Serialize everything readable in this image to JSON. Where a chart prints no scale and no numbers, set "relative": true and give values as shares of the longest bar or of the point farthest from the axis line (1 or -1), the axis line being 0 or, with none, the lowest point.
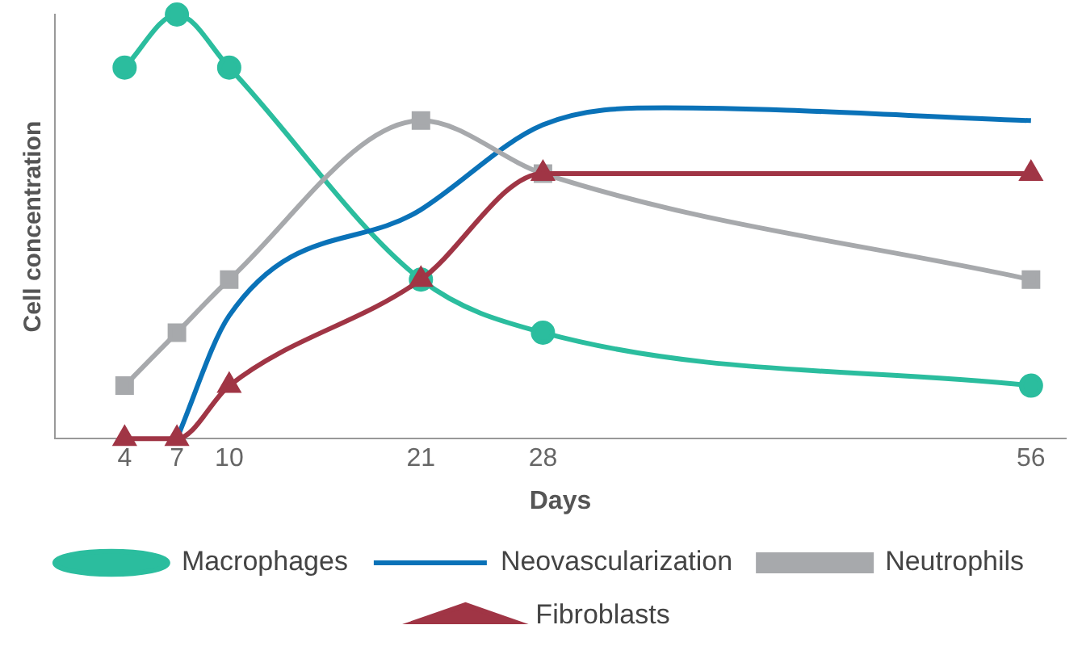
{
  "chart_data": {
    "type": "line",
    "xlabel": "Days",
    "ylabel": "Cell concentration",
    "relative": true,
    "xlim": [
      0,
      58
    ],
    "xticks": [
      4,
      7,
      10,
      21,
      28,
      56
    ],
    "grid": false,
    "legend": "bottom",
    "series": [
      {
        "name": "Macrophages",
        "color": "#2bbd9e",
        "marker": "circle",
        "x": [
          4,
          7,
          10,
          21,
          28,
          56
        ],
        "values": [
          0.875,
          1,
          0.875,
          0.375,
          0.25,
          0.125
        ]
      },
      {
        "name": "Neovascularization",
        "color": "#0a72b8",
        "marker": "none",
        "x": [
          7,
          10,
          21,
          28,
          35,
          56
        ],
        "values": [
          0,
          0.29,
          0.54,
          0.74,
          0.78,
          0.75
        ]
      },
      {
        "name": "Neutrophils",
        "color": "#a7a9ac",
        "marker": "square",
        "x": [
          4,
          7,
          10,
          21,
          28,
          56
        ],
        "values": [
          0.125,
          0.25,
          0.375,
          0.75,
          0.625,
          0.375
        ]
      },
      {
        "name": "Fibroblasts",
        "color": "#a03545",
        "marker": "triangle",
        "x": [
          4,
          7,
          10,
          21,
          28,
          56
        ],
        "values": [
          0,
          0,
          0.125,
          0.375,
          0.625,
          0.625
        ]
      }
    ]
  }
}
